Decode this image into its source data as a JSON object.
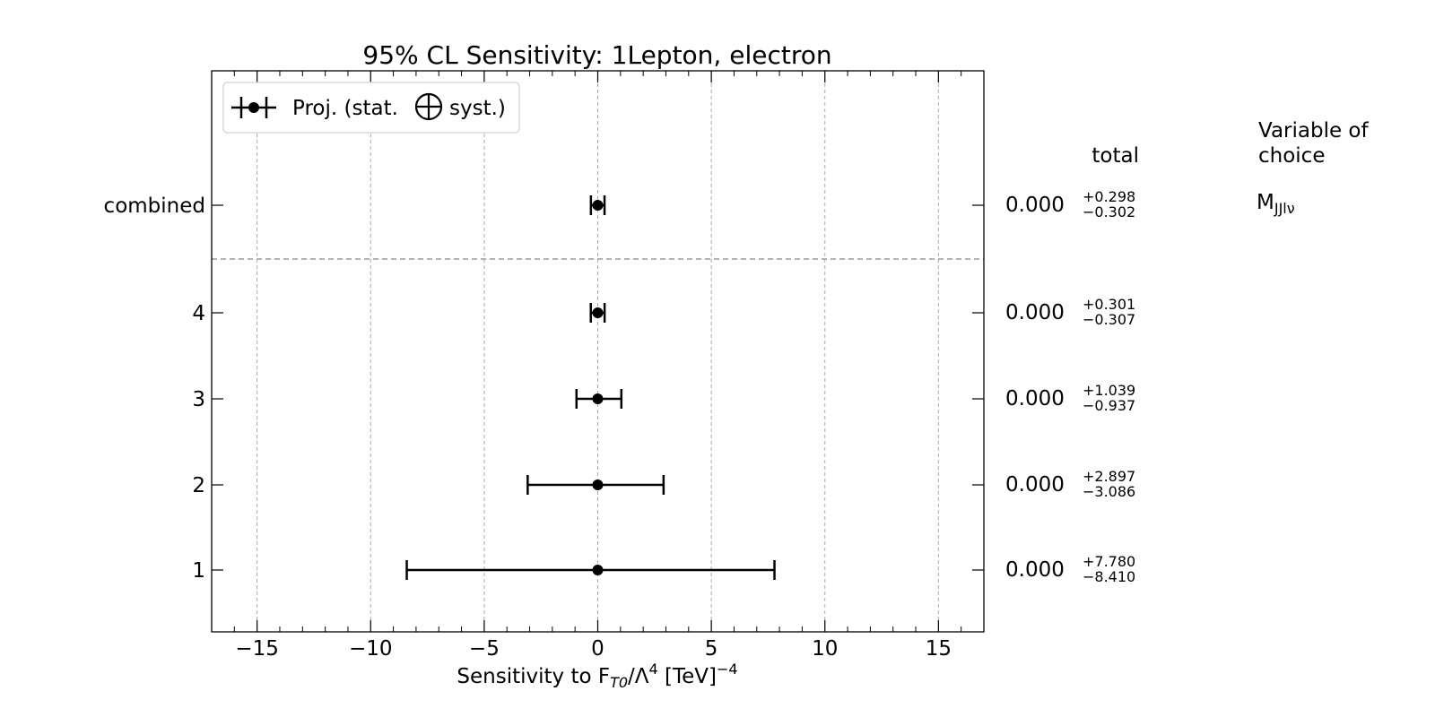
{
  "chart_data": {
    "type": "scatter",
    "title": "95% CL Sensitivity: 1Lepton, electron",
    "xlabel": {
      "prefix": "Sensitivity to F",
      "sub": "T0",
      "mid": "/Λ",
      "sup": "4",
      "unit": " [TeV]",
      "unit_sup": "−4"
    },
    "xlim": [
      -17,
      17
    ],
    "xticks": [
      -15,
      -10,
      -5,
      0,
      5,
      10,
      15
    ],
    "xtick_labels": [
      "−15",
      "−10",
      "−5",
      "0",
      "5",
      "10",
      "15"
    ],
    "grid": "x-dashed",
    "legend": {
      "position": "top-left",
      "label_before": "Proj. (stat.",
      "label_after": "syst.)"
    },
    "rows": [
      {
        "label": "combined",
        "value": 0.0,
        "value_text": "0.000",
        "plus": 0.298,
        "minus": 0.302,
        "plus_text": "+0.298",
        "minus_text": "−0.302"
      },
      {
        "label": "4",
        "value": 0.0,
        "value_text": "0.000",
        "plus": 0.301,
        "minus": 0.307,
        "plus_text": "+0.301",
        "minus_text": "−0.307"
      },
      {
        "label": "3",
        "value": 0.0,
        "value_text": "0.000",
        "plus": 1.039,
        "minus": 0.937,
        "plus_text": "+1.039",
        "minus_text": "−0.937"
      },
      {
        "label": "2",
        "value": 0.0,
        "value_text": "0.000",
        "plus": 2.897,
        "minus": 3.086,
        "plus_text": "+2.897",
        "minus_text": "−3.086"
      },
      {
        "label": "1",
        "value": 0.0,
        "value_text": "0.000",
        "plus": 7.78,
        "minus": 8.41,
        "plus_text": "+7.780",
        "minus_text": "−8.410"
      }
    ],
    "right_headers": {
      "total": "total",
      "variable_line1": "Variable of",
      "variable_line2": "choice"
    },
    "combined_variable": {
      "base": "M",
      "sub": "JJlν"
    }
  }
}
